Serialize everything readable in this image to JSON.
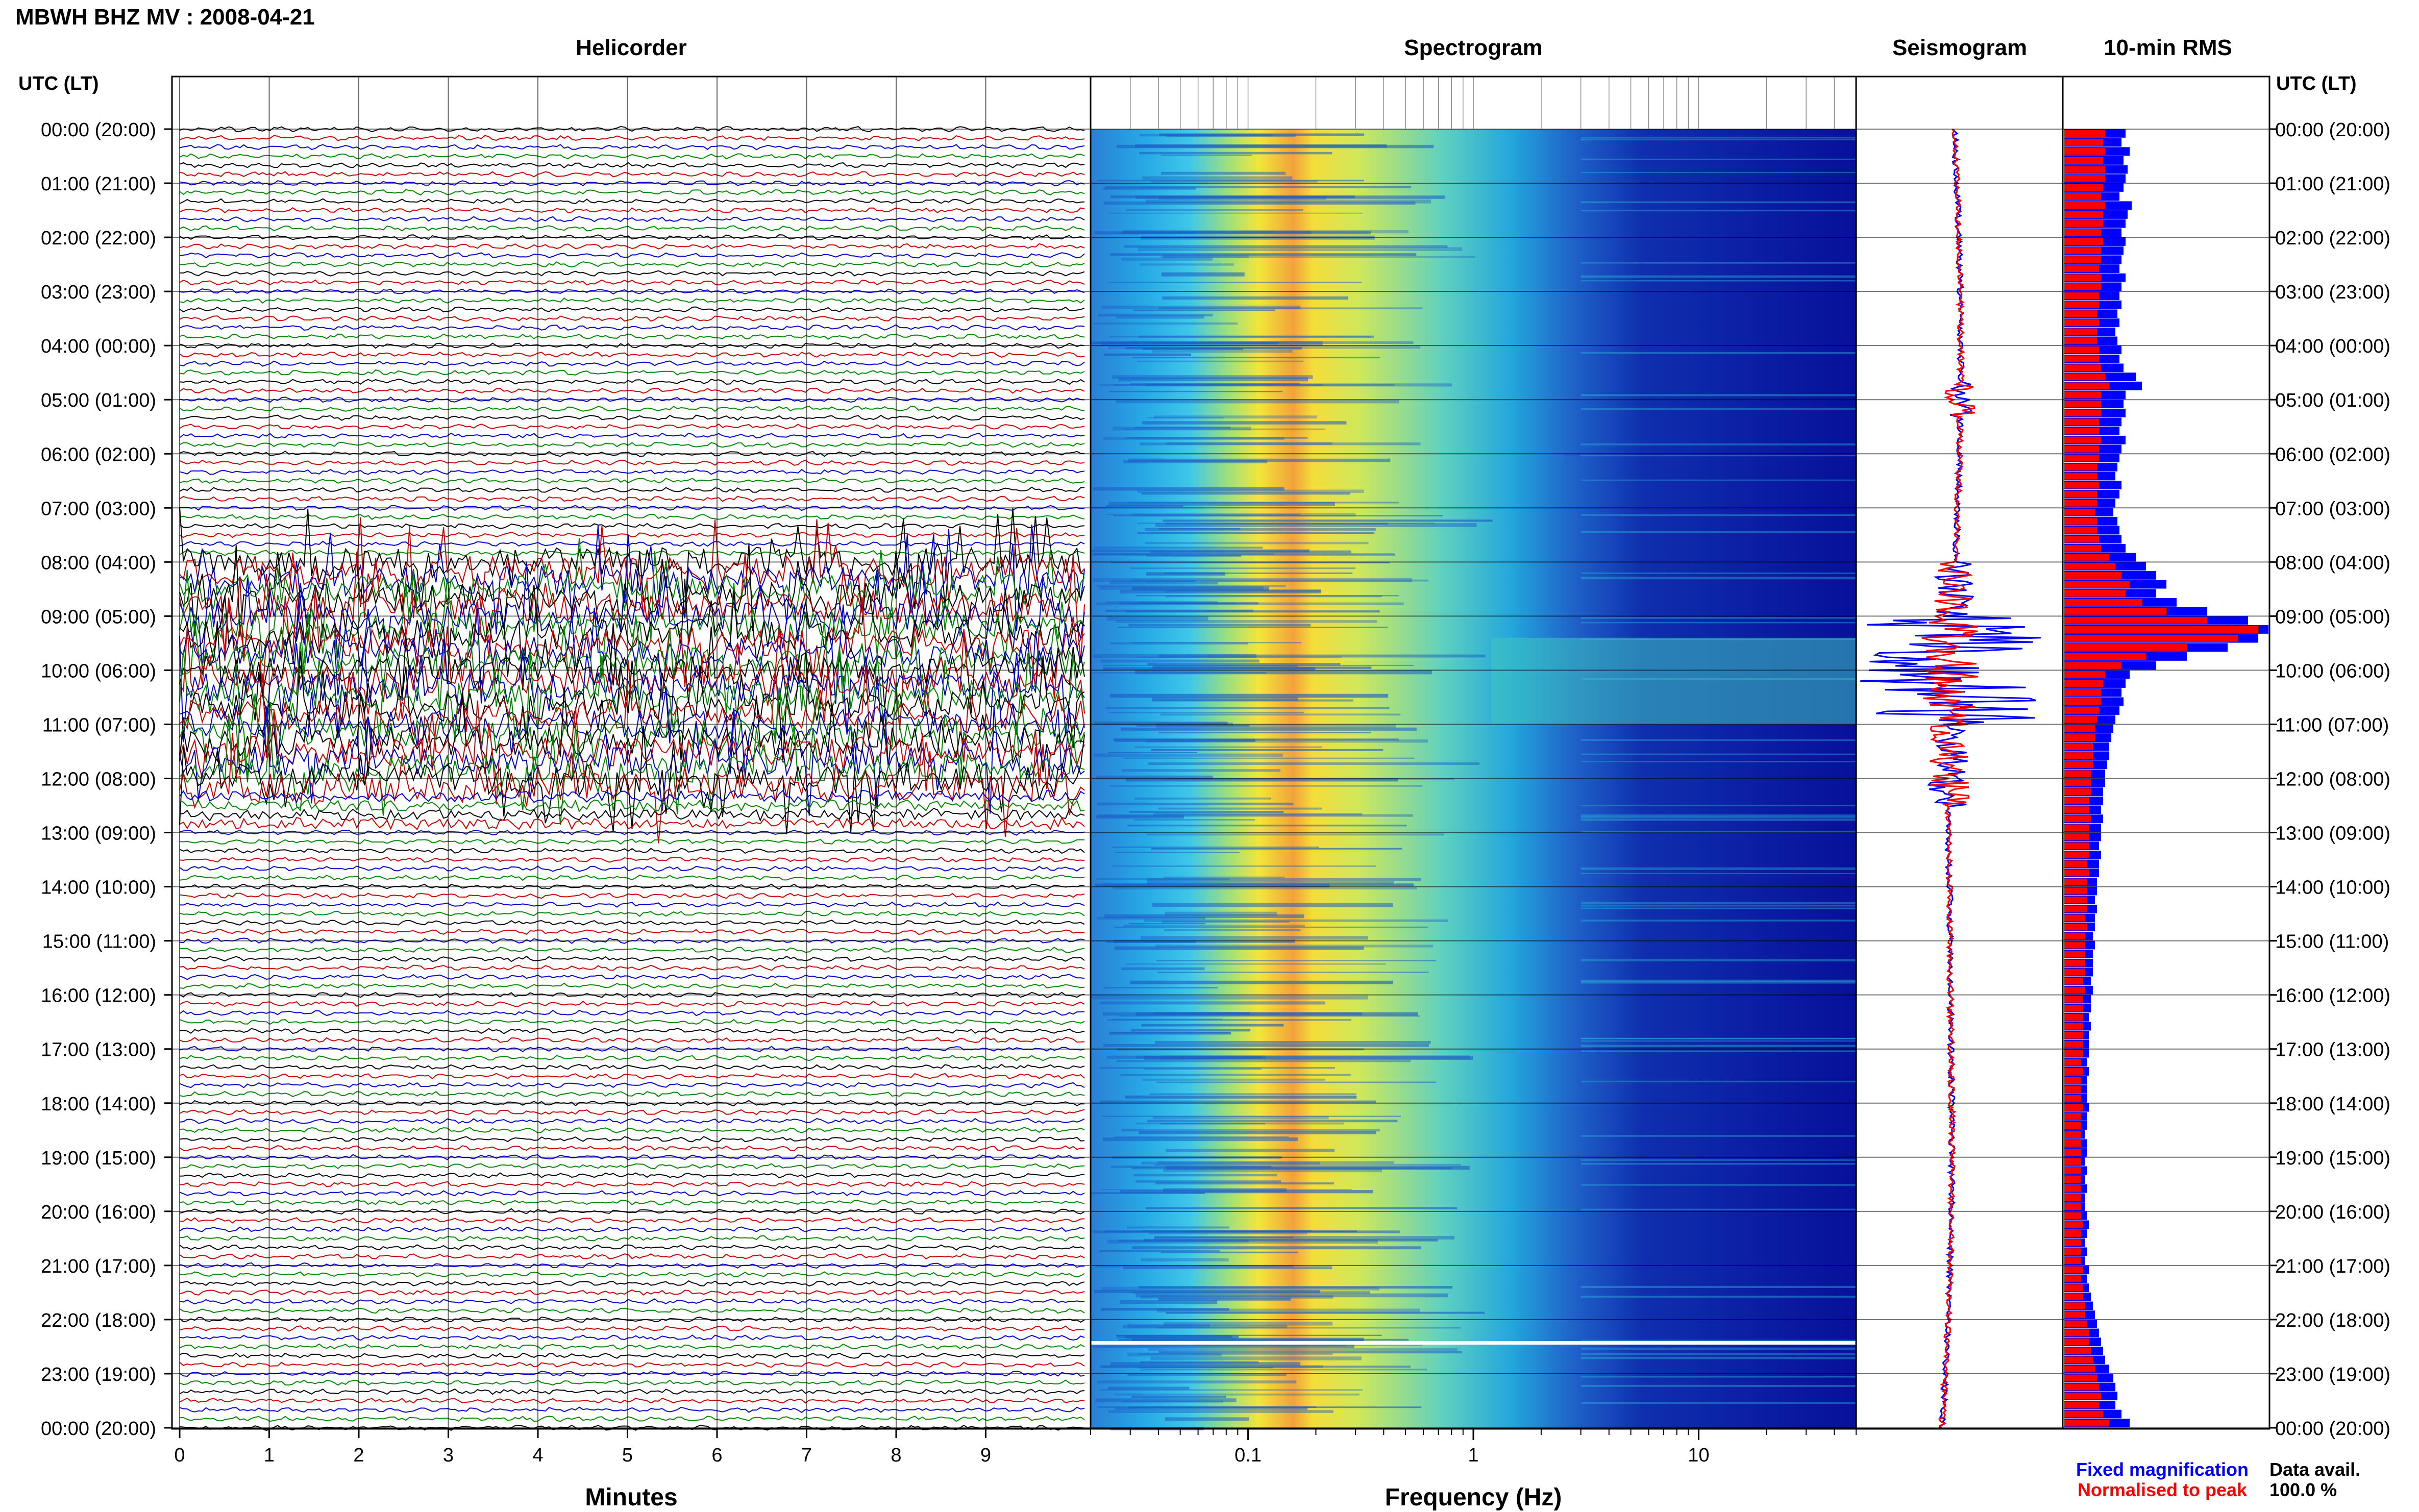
{
  "header": {
    "title": "MBWH BHZ MV : 2008-04-21",
    "utc_label_left": "UTC (LT)",
    "utc_label_right": "UTC (LT)"
  },
  "panels": {
    "helicorder": "Helicorder",
    "spectrogram": "Spectrogram",
    "seismogram": "Seismogram",
    "rms": "10-min RMS"
  },
  "axes": {
    "minutes_label": "Minutes",
    "frequency_label": "Frequency (Hz)",
    "minute_ticks": [
      "0",
      "1",
      "2",
      "3",
      "4",
      "5",
      "6",
      "7",
      "8",
      "9"
    ],
    "frequency_ticks": [
      "0.1",
      "1",
      "10"
    ]
  },
  "time_labels": [
    "00:00 (20:00)",
    "01:00 (21:00)",
    "02:00 (22:00)",
    "03:00 (23:00)",
    "04:00 (00:00)",
    "05:00 (01:00)",
    "06:00 (02:00)",
    "07:00 (03:00)",
    "08:00 (04:00)",
    "09:00 (05:00)",
    "10:00 (06:00)",
    "11:00 (07:00)",
    "12:00 (08:00)",
    "13:00 (09:00)",
    "14:00 (10:00)",
    "15:00 (11:00)",
    "16:00 (12:00)",
    "17:00 (13:00)",
    "18:00 (14:00)",
    "19:00 (15:00)",
    "20:00 (16:00)",
    "21:00 (17:00)",
    "22:00 (18:00)",
    "23:00 (19:00)",
    "00:00 (20:00)"
  ],
  "legend": {
    "fixed": "Fixed magnification",
    "normalised": "Normalised to peak",
    "fixed_color": "#0000ff",
    "normalised_color": "#ff0000"
  },
  "data_availability": {
    "label": "Data avail.",
    "value": "100.0 %"
  },
  "chart_data": {
    "type": "heatmap",
    "title": "MBWH BHZ MV : 2008-04-21",
    "hours": 24,
    "helicorder_colors": [
      "#000000",
      "#cc0000",
      "#0000cc",
      "#008800"
    ],
    "spectrogram": {
      "freq_range_hz": [
        0.02,
        50
      ],
      "scale": "log",
      "peak_band_hz": [
        0.15,
        0.3
      ]
    },
    "rms_10min_fixed": [
      0.3,
      0.28,
      0.32,
      0.29,
      0.31,
      0.3,
      0.29,
      0.27,
      0.33,
      0.31,
      0.3,
      0.28,
      0.3,
      0.29,
      0.28,
      0.27,
      0.3,
      0.28,
      0.27,
      0.28,
      0.26,
      0.27,
      0.25,
      0.26,
      0.28,
      0.27,
      0.29,
      0.35,
      0.38,
      0.3,
      0.29,
      0.3,
      0.28,
      0.27,
      0.3,
      0.28,
      0.27,
      0.26,
      0.25,
      0.28,
      0.27,
      0.25,
      0.24,
      0.26,
      0.27,
      0.28,
      0.3,
      0.35,
      0.4,
      0.45,
      0.5,
      0.45,
      0.55,
      0.7,
      0.9,
      1.0,
      0.95,
      0.8,
      0.6,
      0.45,
      0.32,
      0.3,
      0.28,
      0.29,
      0.27,
      0.25,
      0.24,
      0.23,
      0.22,
      0.22,
      0.21,
      0.2,
      0.2,
      0.19,
      0.19,
      0.18,
      0.19,
      0.18,
      0.18,
      0.17,
      0.18,
      0.17,
      0.17,
      0.16,
      0.16,
      0.15,
      0.16,
      0.15,
      0.15,
      0.14,
      0.15,
      0.14,
      0.14,
      0.14,
      0.13,
      0.14,
      0.13,
      0.13,
      0.12,
      0.13,
      0.12,
      0.12,
      0.12,
      0.11,
      0.12,
      0.11,
      0.11,
      0.11,
      0.12,
      0.11,
      0.11,
      0.1,
      0.11,
      0.11,
      0.1,
      0.11,
      0.1,
      0.11,
      0.1,
      0.1,
      0.11,
      0.12,
      0.11,
      0.1,
      0.11,
      0.1,
      0.12,
      0.11,
      0.12,
      0.13,
      0.14,
      0.15,
      0.16,
      0.17,
      0.18,
      0.19,
      0.2,
      0.22,
      0.24,
      0.25,
      0.26,
      0.25,
      0.28,
      0.32
    ],
    "rms_10min_normalised": [
      0.2,
      0.19,
      0.2,
      0.19,
      0.2,
      0.2,
      0.19,
      0.18,
      0.2,
      0.19,
      0.19,
      0.18,
      0.19,
      0.18,
      0.18,
      0.17,
      0.18,
      0.18,
      0.17,
      0.17,
      0.16,
      0.17,
      0.16,
      0.16,
      0.17,
      0.17,
      0.18,
      0.2,
      0.22,
      0.18,
      0.18,
      0.18,
      0.17,
      0.17,
      0.18,
      0.17,
      0.17,
      0.16,
      0.16,
      0.17,
      0.16,
      0.16,
      0.15,
      0.16,
      0.16,
      0.17,
      0.18,
      0.22,
      0.25,
      0.28,
      0.32,
      0.3,
      0.38,
      0.5,
      0.7,
      0.95,
      0.85,
      0.6,
      0.4,
      0.28,
      0.2,
      0.19,
      0.18,
      0.18,
      0.17,
      0.16,
      0.15,
      0.15,
      0.14,
      0.14,
      0.14,
      0.13,
      0.13,
      0.13,
      0.12,
      0.12,
      0.13,
      0.12,
      0.12,
      0.12,
      0.12,
      0.11,
      0.12,
      0.11,
      0.11,
      0.11,
      0.11,
      0.1,
      0.11,
      0.1,
      0.1,
      0.1,
      0.1,
      0.1,
      0.09,
      0.1,
      0.09,
      0.09,
      0.09,
      0.09,
      0.09,
      0.09,
      0.09,
      0.08,
      0.09,
      0.08,
      0.08,
      0.08,
      0.09,
      0.08,
      0.08,
      0.08,
      0.08,
      0.08,
      0.08,
      0.08,
      0.08,
      0.08,
      0.08,
      0.08,
      0.08,
      0.09,
      0.08,
      0.08,
      0.08,
      0.08,
      0.09,
      0.08,
      0.09,
      0.09,
      0.1,
      0.1,
      0.11,
      0.12,
      0.12,
      0.13,
      0.14,
      0.15,
      0.16,
      0.17,
      0.18,
      0.17,
      0.19,
      0.22
    ]
  }
}
